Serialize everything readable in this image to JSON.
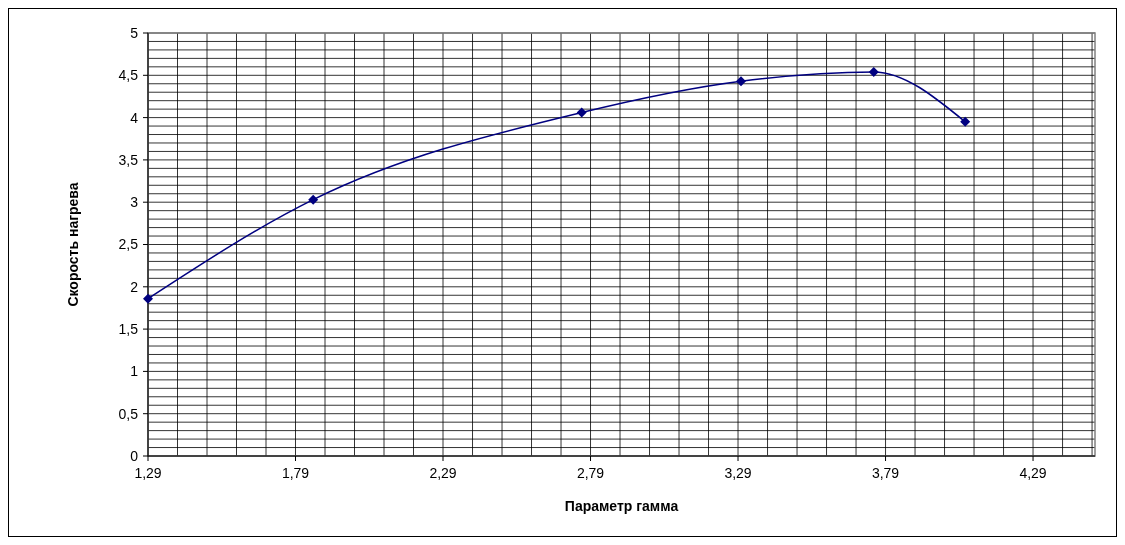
{
  "chart_data": {
    "type": "line",
    "xlabel": "Параметр гамма",
    "ylabel": "Скорость нагрева",
    "x": [
      1.29,
      1.85,
      2.76,
      3.3,
      3.75,
      4.06
    ],
    "series": [
      {
        "color": "#000080",
        "values": [
          1.86,
          3.03,
          4.06,
          4.43,
          4.54,
          3.95
        ]
      }
    ],
    "xlim": [
      1.29,
      4.5
    ],
    "xticks": [
      {
        "value": 1.29,
        "label": "1,29"
      },
      {
        "value": 1.79,
        "label": "1,79"
      },
      {
        "value": 2.29,
        "label": "2,29"
      },
      {
        "value": 2.79,
        "label": "2,79"
      },
      {
        "value": 3.29,
        "label": "3,29"
      },
      {
        "value": 3.79,
        "label": "3,79"
      },
      {
        "value": 4.29,
        "label": "4,29"
      }
    ],
    "ylim": [
      0,
      5
    ],
    "yticks": [
      0,
      {
        "value": 0.5,
        "label": "0,5"
      },
      1,
      {
        "value": 1.5,
        "label": "1,5"
      },
      2,
      {
        "value": 2.5,
        "label": "2,5"
      },
      3,
      {
        "value": 3.5,
        "label": "3,5"
      },
      4,
      {
        "value": 4.5,
        "label": "4,5"
      },
      5
    ],
    "grid": true,
    "marker": "diamond",
    "line_style": "solid"
  }
}
